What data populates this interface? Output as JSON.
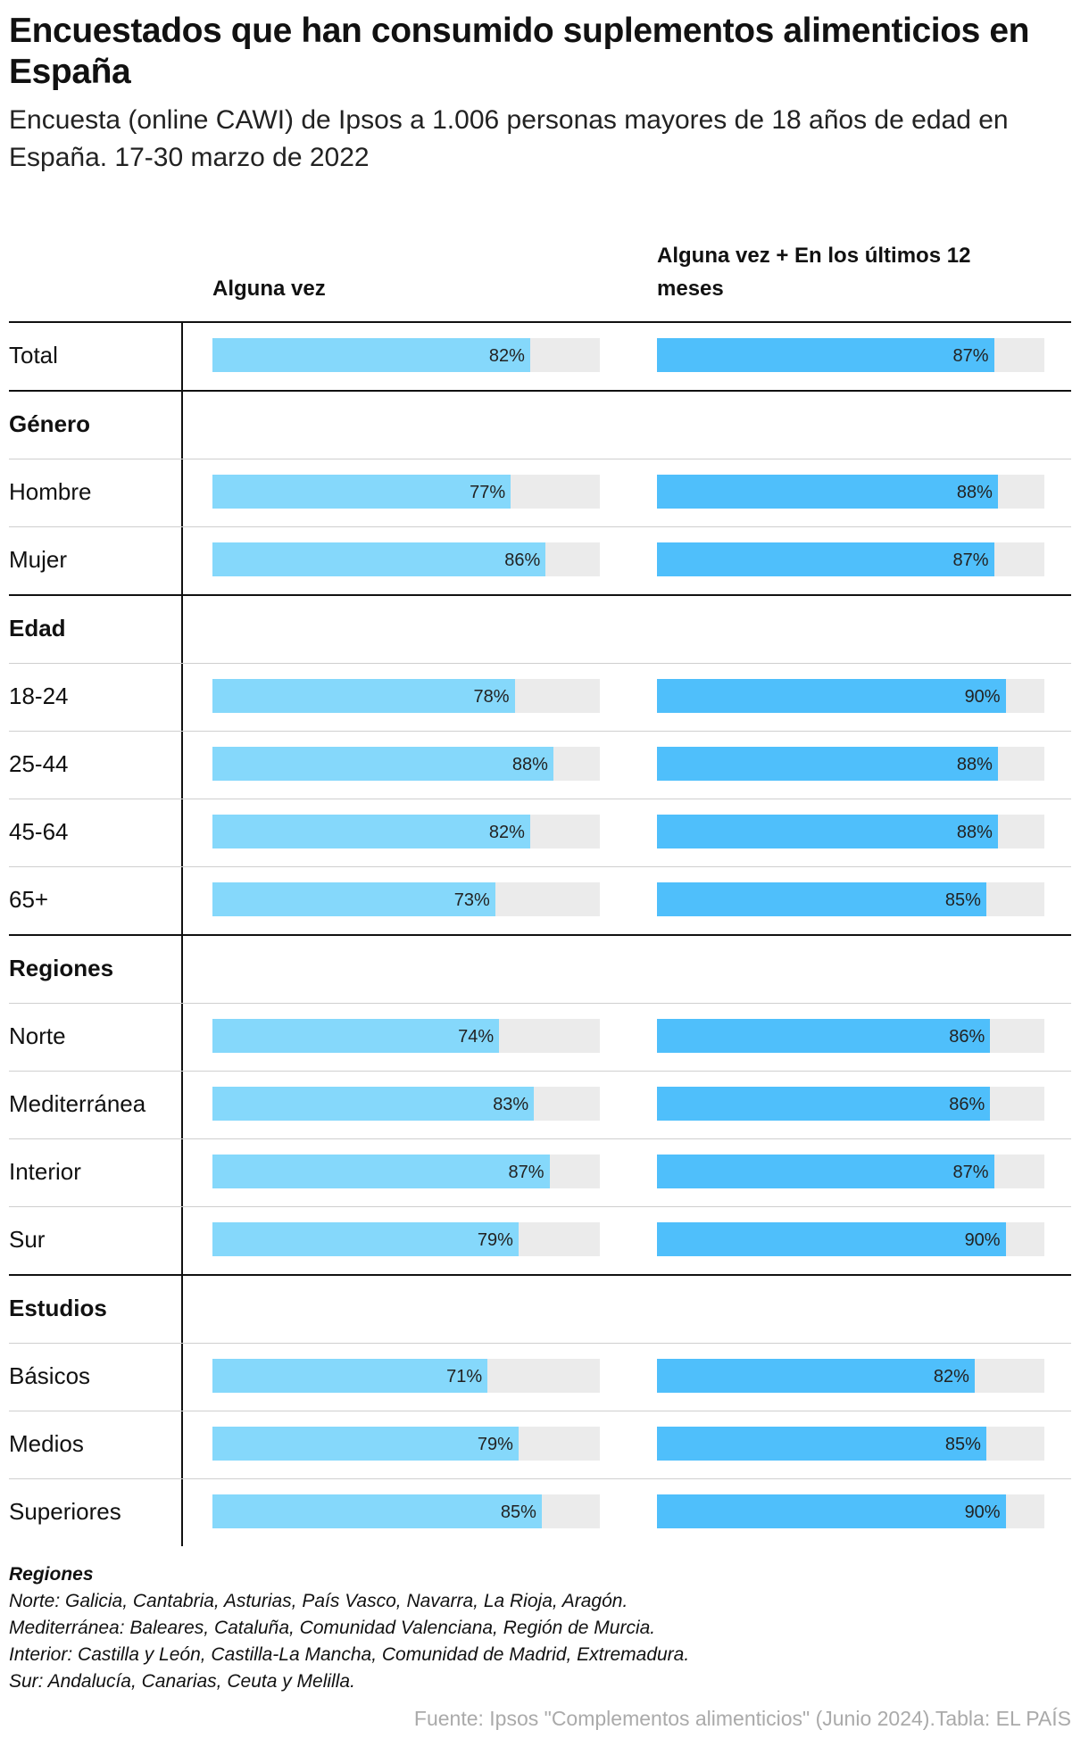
{
  "header": {
    "title": "Encuestados que han consumido suplementos alimenticios en España",
    "subtitle": "Encuesta (online CAWI) de Ipsos a 1.006 personas mayores de 18 años de edad en España. 17-30 marzo de 2022"
  },
  "colors": {
    "col1_bar": "#85d8fb",
    "col2_bar": "#4fbffb",
    "track": "#ebebeb"
  },
  "chart_data": {
    "type": "bar",
    "columns": [
      "Alguna vez",
      "Alguna vez + En los últimos 12 meses"
    ],
    "xlim": [
      0,
      100
    ],
    "rows": [
      {
        "label": "Total",
        "kind": "item",
        "values": [
          82,
          87
        ],
        "value_labels": [
          "82%",
          "87%"
        ]
      },
      {
        "label": "Género",
        "kind": "group"
      },
      {
        "label": "Hombre",
        "kind": "item",
        "values": [
          77,
          88
        ],
        "value_labels": [
          "77%",
          "88%"
        ]
      },
      {
        "label": "Mujer",
        "kind": "item",
        "values": [
          86,
          87
        ],
        "value_labels": [
          "86%",
          "87%"
        ]
      },
      {
        "label": "Edad",
        "kind": "group"
      },
      {
        "label": "18-24",
        "kind": "item",
        "values": [
          78,
          90
        ],
        "value_labels": [
          "78%",
          "90%"
        ]
      },
      {
        "label": "25-44",
        "kind": "item",
        "values": [
          88,
          88
        ],
        "value_labels": [
          "88%",
          "88%"
        ]
      },
      {
        "label": "45-64",
        "kind": "item",
        "values": [
          82,
          88
        ],
        "value_labels": [
          "82%",
          "88%"
        ]
      },
      {
        "label": "65+",
        "kind": "item",
        "values": [
          73,
          85
        ],
        "value_labels": [
          "73%",
          "85%"
        ]
      },
      {
        "label": "Regiones",
        "kind": "group"
      },
      {
        "label": "Norte",
        "kind": "item",
        "values": [
          74,
          86
        ],
        "value_labels": [
          "74%",
          "86%"
        ]
      },
      {
        "label": "Mediterránea",
        "kind": "item",
        "values": [
          83,
          86
        ],
        "value_labels": [
          "83%",
          "86%"
        ]
      },
      {
        "label": "Interior",
        "kind": "item",
        "values": [
          87,
          87
        ],
        "value_labels": [
          "87%",
          "87%"
        ]
      },
      {
        "label": "Sur",
        "kind": "item",
        "values": [
          79,
          90
        ],
        "value_labels": [
          "79%",
          "90%"
        ]
      },
      {
        "label": "Estudios",
        "kind": "group"
      },
      {
        "label": "Básicos",
        "kind": "item",
        "values": [
          71,
          82
        ],
        "value_labels": [
          "71%",
          "82%"
        ]
      },
      {
        "label": "Medios",
        "kind": "item",
        "values": [
          79,
          85
        ],
        "value_labels": [
          "79%",
          "85%"
        ]
      },
      {
        "label": "Superiores",
        "kind": "item",
        "values": [
          85,
          90
        ],
        "value_labels": [
          "85%",
          "90%"
        ]
      }
    ]
  },
  "notes": {
    "heading": "Regiones",
    "lines": [
      "Norte: Galicia, Cantabria, Asturias, País Vasco, Navarra, La Rioja, Aragón.",
      "Mediterránea: Baleares, Cataluña, Comunidad Valenciana, Región de Murcia.",
      "Interior: Castilla y León, Castilla-La Mancha, Comunidad de Madrid, Extremadura.",
      "Sur: Andalucía, Canarias, Ceuta y Melilla."
    ]
  },
  "footer": {
    "source": "Fuente: Ipsos \"Complementos alimenticios\" (Junio 2024).Tabla: EL PAÍS"
  }
}
